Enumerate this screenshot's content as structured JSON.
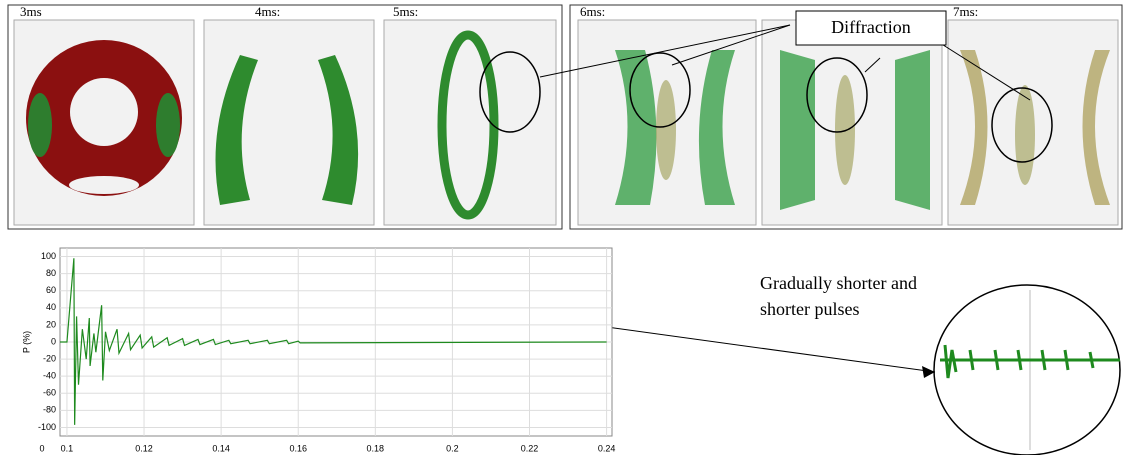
{
  "panels": {
    "labels": [
      "3ms",
      "4ms:",
      "5ms:",
      "6ms:",
      "7ms:"
    ]
  },
  "annotations": {
    "diffraction": "Diffraction",
    "pulses": [
      "Gradually shorter and",
      "shorter pulses"
    ]
  },
  "chart_data": {
    "type": "line",
    "y_label": "P (%)",
    "x_origin_label": "0",
    "color": "#1e8a1e",
    "grid": true,
    "xlim": [
      0.0982,
      0.2414
    ],
    "ylim": [
      -110,
      110
    ],
    "xticks": [
      0.1,
      0.12,
      0.14,
      0.16,
      0.18,
      0.2,
      0.22,
      0.24
    ],
    "yticks": [
      100,
      80,
      60,
      40,
      20,
      0,
      -20,
      -40,
      -60,
      -80,
      -100
    ],
    "x": [
      0.0982,
      0.1,
      0.1018,
      0.102,
      0.1025,
      0.103,
      0.104,
      0.105,
      0.1058,
      0.106,
      0.107,
      0.1075,
      0.109,
      0.1093,
      0.11,
      0.111,
      0.113,
      0.1135,
      0.116,
      0.1165,
      0.119,
      0.1195,
      0.122,
      0.1225,
      0.126,
      0.1265,
      0.13,
      0.1305,
      0.134,
      0.1345,
      0.138,
      0.1385,
      0.142,
      0.1425,
      0.147,
      0.1475,
      0.152,
      0.1525,
      0.157,
      0.1575,
      0.16,
      0.1605,
      0.24
    ],
    "values": [
      0,
      0,
      98,
      -97,
      30,
      -50,
      15,
      -20,
      28,
      -28,
      10,
      -12,
      43,
      -45,
      12,
      -10,
      15,
      -13,
      10,
      -9,
      8,
      -7,
      6,
      -6,
      5,
      -4,
      4,
      -4,
      3,
      -3,
      3,
      -3,
      2,
      -2,
      2,
      -2,
      2,
      -2,
      2,
      -2,
      1,
      -1,
      0
    ]
  }
}
